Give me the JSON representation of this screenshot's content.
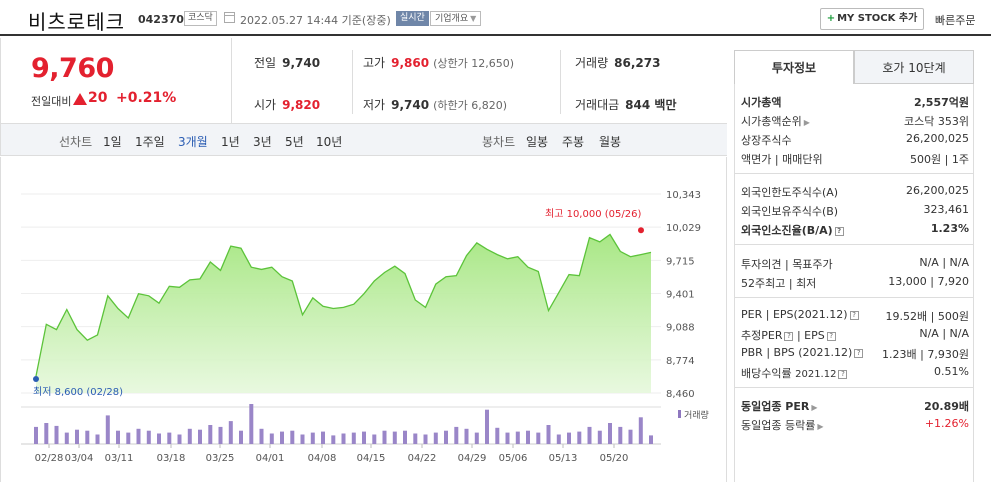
{
  "header": {
    "stock_name": "비츠로테크",
    "stock_code": "042370",
    "market_badge": "코스닥",
    "datetime": "2022.05.27 14:44 기준(장중)",
    "realtime_badge": "실시간",
    "company_info": "기업개요",
    "mystock_plus": "+",
    "mystock_label": "MY STOCK 추가",
    "quick_order": "빠른주문"
  },
  "price": {
    "current": "9,760",
    "prev_label": "전일대비",
    "change": "20",
    "change_pct": "+0.21%"
  },
  "stats": {
    "prev_close_label": "전일",
    "prev_close": "9,740",
    "high_label": "고가",
    "high": "9,860",
    "upper_limit": "(상한가 12,650)",
    "volume_label": "거래량",
    "volume": "86,273",
    "open_label": "시가",
    "open": "9,820",
    "low_label": "저가",
    "low": "9,740",
    "lower_limit": "(하한가 6,820)",
    "amount_label": "거래대금",
    "amount": "844 백만"
  },
  "tabs": {
    "line_chart": "선차트",
    "periods": [
      "1일",
      "1주일",
      "3개월",
      "1년",
      "3년",
      "5년",
      "10년"
    ],
    "active_period": "3개월",
    "candle_chart": "봉차트",
    "candles": [
      "일봉",
      "주봉",
      "월봉"
    ]
  },
  "chart_data": {
    "type": "line",
    "y_ticks": [
      "10,343",
      "10,029",
      "9,715",
      "9,401",
      "9,088",
      "8,774",
      "8,460"
    ],
    "ylim": [
      8460,
      10343
    ],
    "x_ticks": [
      "02/28",
      "03/04",
      "03/11",
      "03/18",
      "03/25",
      "04/01",
      "04/08",
      "04/15",
      "04/22",
      "04/29",
      "05/06",
      "05/13",
      "05/20"
    ],
    "max_label": "최고 10,000 (05/26)",
    "min_label": "최저 8,600 (02/28)",
    "volume_legend": "거래량",
    "series": [
      {
        "values": [
          8620,
          9110,
          9060,
          9250,
          9060,
          8960,
          9010,
          9380,
          9260,
          9170,
          9400,
          9380,
          9310,
          9470,
          9460,
          9530,
          9540,
          9700,
          9620,
          9850,
          9830,
          9650,
          9630,
          9650,
          9560,
          9520,
          9200,
          9360,
          9280,
          9260,
          9270,
          9300,
          9400,
          9520,
          9600,
          9660,
          9590,
          9340,
          9270,
          9490,
          9560,
          9570,
          9760,
          9880,
          9820,
          9770,
          9730,
          9750,
          9650,
          9610,
          9240,
          9410,
          9580,
          9570,
          9930,
          9890,
          9960,
          9800,
          9750,
          9770,
          9790
        ]
      }
    ],
    "volumes": [
      18,
      22,
      19,
      12,
      15,
      14,
      10,
      30,
      14,
      12,
      16,
      14,
      11,
      12,
      10,
      16,
      15,
      20,
      18,
      24,
      14,
      42,
      16,
      11,
      13,
      14,
      10,
      12,
      13,
      9,
      11,
      12,
      13,
      10,
      14,
      13,
      14,
      11,
      10,
      12,
      14,
      18,
      16,
      12,
      36,
      17,
      12,
      13,
      14,
      12,
      20,
      10,
      12,
      13,
      18,
      14,
      22,
      18,
      15,
      28,
      9
    ]
  },
  "info": {
    "tab_active": "투자정보",
    "tab_inactive": "호가 10단계",
    "market_cap_label": "시가총액",
    "market_cap": "2,557억원",
    "cap_rank_label": "시가총액순위",
    "cap_rank": "코스닥 353위",
    "shares_label": "상장주식수",
    "shares": "26,200,025",
    "face_label": "액면가",
    "trade_unit_label": "매매단위",
    "face": "500원",
    "trade_unit": "1주",
    "foreign_limit_label": "외국인한도주식수(A)",
    "foreign_limit": "26,200,025",
    "foreign_hold_label": "외국인보유주식수(B)",
    "foreign_hold": "323,461",
    "foreign_ratio_label": "외국인소진율(B/A)",
    "foreign_ratio": "1.23%",
    "opinion_label": "투자의견",
    "target_label": "목표주가",
    "opinion": "N/A",
    "target": "N/A",
    "w52_label": "52주최고",
    "w52_low_label": "최저",
    "w52_high": "13,000",
    "w52_low": "7,920",
    "per_label": "PER",
    "eps_label": "EPS(2021.12)",
    "per": "19.52배",
    "eps": "500원",
    "est_per_label": "추정PER",
    "est_eps_label": "EPS",
    "est_per": "N/A",
    "est_eps": "N/A",
    "pbr_label": "PBR",
    "bps_label": "BPS (2021.12)",
    "pbr": "1.23배",
    "bps": "7,930원",
    "div_label": "배당수익률",
    "div_date": "2021.12",
    "div": "0.51%",
    "sector_per_label": "동일업종 PER",
    "sector_per": "20.89배",
    "sector_rate_label": "동일업종 등락률",
    "sector_rate": "+1.26%"
  }
}
